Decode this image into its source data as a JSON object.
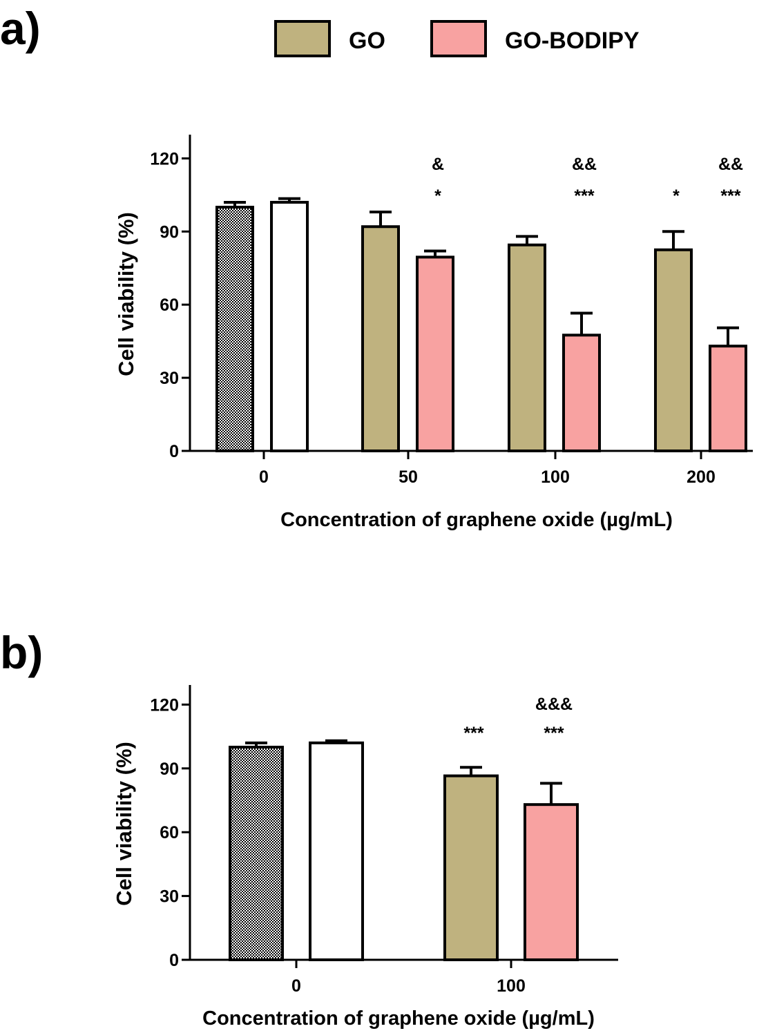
{
  "colors": {
    "GO": "#bfb27f",
    "GO-BODIPY": "#f8a2a1",
    "untreated": "#ffffff",
    "control": "#888888",
    "axis": "#000000"
  },
  "legend": {
    "placement": "top-center",
    "items": [
      {
        "label": "GO",
        "color": "#bfb27f"
      },
      {
        "label": "GO-BODIPY",
        "color": "#f8a2a1"
      }
    ]
  },
  "chart_data": [
    {
      "panel_label": "a)",
      "type": "bar",
      "xlabel": "Concentration of graphene oxide (µg/mL)",
      "ylabel": "Cell viability (%)",
      "ylim": [
        0,
        130
      ],
      "yticks": [
        0,
        30,
        60,
        90,
        120
      ],
      "categories": [
        "0",
        "50",
        "100",
        "200"
      ],
      "bars": [
        {
          "category": "0",
          "fill": "control",
          "value": 100,
          "error": 2,
          "sig": "",
          "amp": ""
        },
        {
          "category": "0",
          "fill": "untreated",
          "value": 102,
          "error": 1.5,
          "sig": "",
          "amp": ""
        },
        {
          "category": "50",
          "fill": "GO",
          "value": 92,
          "error": 6,
          "sig": "",
          "amp": ""
        },
        {
          "category": "50",
          "fill": "GO-BODIPY",
          "value": 79.5,
          "error": 2.5,
          "sig": "*",
          "amp": "&"
        },
        {
          "category": "100",
          "fill": "GO",
          "value": 84.5,
          "error": 3.5,
          "sig": "",
          "amp": ""
        },
        {
          "category": "100",
          "fill": "GO-BODIPY",
          "value": 47.5,
          "error": 9,
          "sig": "***",
          "amp": "&&"
        },
        {
          "category": "200",
          "fill": "GO",
          "value": 82.5,
          "error": 7.5,
          "sig": "*",
          "amp": ""
        },
        {
          "category": "200",
          "fill": "GO-BODIPY",
          "value": 43,
          "error": 7.5,
          "sig": "***",
          "amp": "&&"
        }
      ],
      "grid": false
    },
    {
      "panel_label": "b)",
      "type": "bar",
      "xlabel": "Concentration of graphene oxide (µg/mL)",
      "ylabel": "Cell viability (%)",
      "ylim": [
        0,
        130
      ],
      "yticks": [
        0,
        30,
        60,
        90,
        120
      ],
      "categories": [
        "0",
        "100"
      ],
      "bars": [
        {
          "category": "0",
          "fill": "control",
          "value": 100,
          "error": 2,
          "sig": "",
          "amp": ""
        },
        {
          "category": "0",
          "fill": "untreated",
          "value": 102,
          "error": 1,
          "sig": "",
          "amp": ""
        },
        {
          "category": "100",
          "fill": "GO",
          "value": 86.5,
          "error": 4,
          "sig": "***",
          "amp": ""
        },
        {
          "category": "100",
          "fill": "GO-BODIPY",
          "value": 73,
          "error": 10,
          "sig": "***",
          "amp": "&&&"
        }
      ],
      "grid": false
    }
  ]
}
